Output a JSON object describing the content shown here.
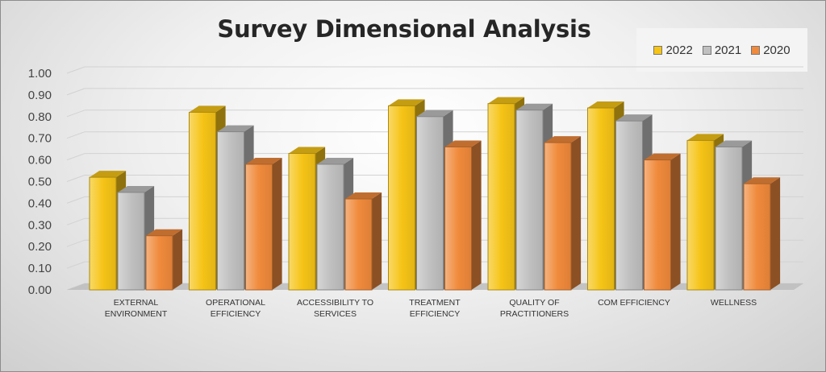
{
  "chart_data": {
    "type": "bar",
    "title": "Survey Dimensional Analysis",
    "categories": [
      [
        "EXTERNAL",
        "ENVIRONMENT"
      ],
      [
        "OPERATIONAL",
        "EFFICIENCY"
      ],
      [
        "ACCESSIBILITY TO",
        "SERVICES"
      ],
      [
        "TREATMENT",
        "EFFICIENCY"
      ],
      [
        "QUALITY OF",
        "PRACTITIONERS"
      ],
      [
        "COM EFFICIENCY"
      ],
      [
        "WELLNESS"
      ]
    ],
    "series": [
      {
        "name": "2022",
        "color": "#f6c417",
        "values": [
          0.52,
          0.82,
          0.63,
          0.85,
          0.86,
          0.84,
          0.69
        ]
      },
      {
        "name": "2021",
        "color": "#c0c0c0",
        "values": [
          0.45,
          0.73,
          0.58,
          0.8,
          0.83,
          0.78,
          0.66
        ]
      },
      {
        "name": "2020",
        "color": "#f08a3c",
        "values": [
          0.25,
          0.58,
          0.42,
          0.66,
          0.68,
          0.6,
          0.49
        ]
      }
    ],
    "y_ticks": [
      "0.00",
      "0.10",
      "0.20",
      "0.30",
      "0.40",
      "0.50",
      "0.60",
      "0.70",
      "0.80",
      "0.90",
      "1.00"
    ],
    "ylim": [
      0,
      1
    ],
    "xlabel": "",
    "ylabel": "",
    "grid": true,
    "legend_position": "top-right"
  }
}
